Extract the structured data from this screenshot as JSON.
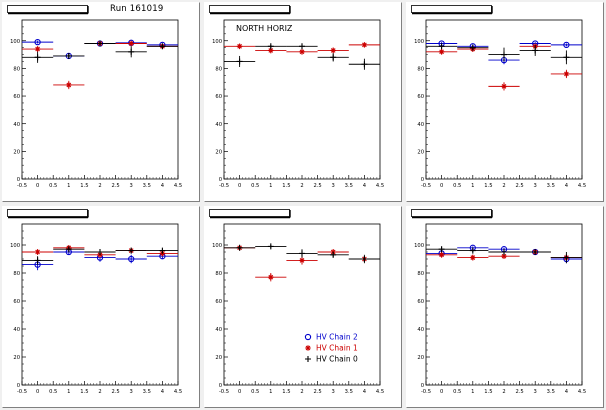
{
  "run_label": "Run 161019",
  "chart_data": [
    {
      "type": "scatter",
      "title": "",
      "annotation": "",
      "x_ticks": [
        "-0.5",
        "0",
        "0.5",
        "1",
        "1.5",
        "2",
        "2.5",
        "3",
        "3.5",
        "4",
        "4.5"
      ],
      "y_ticks": [
        "0",
        "20",
        "40",
        "60",
        "80",
        "100"
      ],
      "xlim": [
        -0.5,
        4.5
      ],
      "ylim": [
        0,
        115
      ],
      "series": [
        {
          "color": "#0000cc",
          "marker": "circle",
          "points": [
            {
              "x": 0,
              "y": 99,
              "xerr": 0.5,
              "yerr": 1
            },
            {
              "x": 1,
              "y": 89,
              "xerr": 0.5,
              "yerr": 2
            },
            {
              "x": 2,
              "y": 98,
              "xerr": 0.5,
              "yerr": 1
            },
            {
              "x": 3,
              "y": 98.5,
              "xerr": 0.5,
              "yerr": 1
            },
            {
              "x": 4,
              "y": 97,
              "xerr": 0.5,
              "yerr": 1
            }
          ]
        },
        {
          "color": "#cc0000",
          "marker": "star",
          "points": [
            {
              "x": 0,
              "y": 94,
              "xerr": 0.5,
              "yerr": 2
            },
            {
              "x": 1,
              "y": 68,
              "xerr": 0.5,
              "yerr": 3
            },
            {
              "x": 2,
              "y": 98,
              "xerr": 0.5,
              "yerr": 1
            },
            {
              "x": 3,
              "y": 98,
              "xerr": 0.5,
              "yerr": 1
            },
            {
              "x": 4,
              "y": 96,
              "xerr": 0.5,
              "yerr": 1
            }
          ]
        },
        {
          "color": "#000000",
          "marker": "cross",
          "points": [
            {
              "x": 0,
              "y": 88,
              "xerr": 0.5,
              "yerr": 4
            },
            {
              "x": 1,
              "y": 89,
              "xerr": 0.5,
              "yerr": 2
            },
            {
              "x": 2,
              "y": 98,
              "xerr": 0.5,
              "yerr": 1
            },
            {
              "x": 3,
              "y": 92,
              "xerr": 0.5,
              "yerr": 4
            },
            {
              "x": 4,
              "y": 96,
              "xerr": 0.5,
              "yerr": 1
            }
          ]
        }
      ]
    },
    {
      "type": "scatter",
      "title": "",
      "annotation": "NORTH HORIZ",
      "x_ticks": [
        "-0.5",
        "0",
        "0.5",
        "1",
        "1.5",
        "2",
        "2.5",
        "3",
        "3.5",
        "4",
        "4.5"
      ],
      "y_ticks": [
        "0",
        "20",
        "40",
        "60",
        "80",
        "100"
      ],
      "xlim": [
        -0.5,
        4.5
      ],
      "ylim": [
        0,
        115
      ],
      "series": [
        {
          "color": "#0000cc",
          "marker": "circle",
          "points": []
        },
        {
          "color": "#cc0000",
          "marker": "star",
          "points": [
            {
              "x": 0,
              "y": 96,
              "xerr": 0.5,
              "yerr": 1
            },
            {
              "x": 1,
              "y": 93,
              "xerr": 0.5,
              "yerr": 2
            },
            {
              "x": 2,
              "y": 92,
              "xerr": 0.5,
              "yerr": 2
            },
            {
              "x": 3,
              "y": 93,
              "xerr": 0.5,
              "yerr": 2
            },
            {
              "x": 4,
              "y": 97,
              "xerr": 0.5,
              "yerr": 1
            }
          ]
        },
        {
          "color": "#000000",
          "marker": "cross",
          "points": [
            {
              "x": 0,
              "y": 85,
              "xerr": 0.5,
              "yerr": 4
            },
            {
              "x": 1,
              "y": 96,
              "xerr": 0.5,
              "yerr": 1
            },
            {
              "x": 2,
              "y": 96,
              "xerr": 0.5,
              "yerr": 1
            },
            {
              "x": 3,
              "y": 88,
              "xerr": 0.5,
              "yerr": 3
            },
            {
              "x": 4,
              "y": 83,
              "xerr": 0.5,
              "yerr": 4
            }
          ]
        }
      ]
    },
    {
      "type": "scatter",
      "title": "",
      "annotation": "",
      "x_ticks": [
        "-0.5",
        "0",
        "0.5",
        "1",
        "1.5",
        "2",
        "2.5",
        "3",
        "3.5",
        "4",
        "4.5"
      ],
      "y_ticks": [
        "0",
        "20",
        "40",
        "60",
        "80",
        "100"
      ],
      "xlim": [
        -0.5,
        4.5
      ],
      "ylim": [
        0,
        115
      ],
      "series": [
        {
          "color": "#0000cc",
          "marker": "circle",
          "points": [
            {
              "x": 0,
              "y": 98,
              "xerr": 0.5,
              "yerr": 1
            },
            {
              "x": 1,
              "y": 96,
              "xerr": 0.5,
              "yerr": 1
            },
            {
              "x": 2,
              "y": 86,
              "xerr": 0.5,
              "yerr": 3
            },
            {
              "x": 3,
              "y": 98,
              "xerr": 0.5,
              "yerr": 1
            },
            {
              "x": 4,
              "y": 97,
              "xerr": 0.5,
              "yerr": 1
            }
          ]
        },
        {
          "color": "#cc0000",
          "marker": "star",
          "points": [
            {
              "x": 0,
              "y": 92,
              "xerr": 0.5,
              "yerr": 2
            },
            {
              "x": 1,
              "y": 94,
              "xerr": 0.5,
              "yerr": 2
            },
            {
              "x": 2,
              "y": 67,
              "xerr": 0.5,
              "yerr": 3
            },
            {
              "x": 3,
              "y": 96,
              "xerr": 0.5,
              "yerr": 1
            },
            {
              "x": 4,
              "y": 76,
              "xerr": 0.5,
              "yerr": 3
            }
          ]
        },
        {
          "color": "#000000",
          "marker": "cross",
          "points": [
            {
              "x": 0,
              "y": 96,
              "xerr": 0.5,
              "yerr": 1
            },
            {
              "x": 1,
              "y": 95,
              "xerr": 0.5,
              "yerr": 1
            },
            {
              "x": 2,
              "y": 90,
              "xerr": 0.5,
              "yerr": 5
            },
            {
              "x": 3,
              "y": 93,
              "xerr": 0.5,
              "yerr": 4
            },
            {
              "x": 4,
              "y": 88,
              "xerr": 0.5,
              "yerr": 5
            }
          ]
        }
      ]
    },
    {
      "type": "scatter",
      "title": "",
      "annotation": "",
      "x_ticks": [
        "-0.5",
        "0",
        "0.5",
        "1",
        "1.5",
        "2",
        "2.5",
        "3",
        "3.5",
        "4",
        "4.5"
      ],
      "y_ticks": [
        "0",
        "20",
        "40",
        "60",
        "80",
        "100"
      ],
      "xlim": [
        -0.5,
        4.5
      ],
      "ylim": [
        0,
        115
      ],
      "series": [
        {
          "color": "#0000cc",
          "marker": "circle",
          "points": [
            {
              "x": 0,
              "y": 86,
              "xerr": 0.5,
              "yerr": 4
            },
            {
              "x": 1,
              "y": 95,
              "xerr": 0.5,
              "yerr": 2
            },
            {
              "x": 2,
              "y": 91,
              "xerr": 0.5,
              "yerr": 3
            },
            {
              "x": 3,
              "y": 90,
              "xerr": 0.5,
              "yerr": 3
            },
            {
              "x": 4,
              "y": 92,
              "xerr": 0.5,
              "yerr": 2
            }
          ]
        },
        {
          "color": "#cc0000",
          "marker": "star",
          "points": [
            {
              "x": 0,
              "y": 95,
              "xerr": 0.5,
              "yerr": 2
            },
            {
              "x": 1,
              "y": 98,
              "xerr": 0.5,
              "yerr": 1
            },
            {
              "x": 2,
              "y": 93,
              "xerr": 0.5,
              "yerr": 2
            },
            {
              "x": 3,
              "y": 96,
              "xerr": 0.5,
              "yerr": 1
            },
            {
              "x": 4,
              "y": 94,
              "xerr": 0.5,
              "yerr": 2
            }
          ]
        },
        {
          "color": "#000000",
          "marker": "cross",
          "points": [
            {
              "x": 0,
              "y": 89,
              "xerr": 0.5,
              "yerr": 3
            },
            {
              "x": 1,
              "y": 97,
              "xerr": 0.5,
              "yerr": 1
            },
            {
              "x": 2,
              "y": 95,
              "xerr": 0.5,
              "yerr": 2
            },
            {
              "x": 3,
              "y": 96,
              "xerr": 0.5,
              "yerr": 1
            },
            {
              "x": 4,
              "y": 96,
              "xerr": 0.5,
              "yerr": 1
            }
          ]
        }
      ]
    },
    {
      "type": "scatter",
      "title": "",
      "annotation": "",
      "x_ticks": [
        "-0.5",
        "0",
        "0.5",
        "1",
        "1.5",
        "2",
        "2.5",
        "3",
        "3.5",
        "4",
        "4.5"
      ],
      "y_ticks": [
        "0",
        "20",
        "40",
        "60",
        "80",
        "100"
      ],
      "xlim": [
        -0.5,
        4.5
      ],
      "ylim": [
        0,
        115
      ],
      "legend": {
        "placement": "bottom-right",
        "entries": [
          "HV Chain 2",
          "HV Chain 1",
          "HV Chain 0"
        ]
      },
      "series": [
        {
          "name": "HV Chain 2",
          "color": "#0000cc",
          "marker": "circle",
          "points": []
        },
        {
          "name": "HV Chain 1",
          "color": "#cc0000",
          "marker": "star",
          "points": [
            {
              "x": 0,
              "y": 98,
              "xerr": 0.5,
              "yerr": 1
            },
            {
              "x": 1,
              "y": 77,
              "xerr": 0.5,
              "yerr": 3
            },
            {
              "x": 2,
              "y": 89,
              "xerr": 0.5,
              "yerr": 3
            },
            {
              "x": 3,
              "y": 95,
              "xerr": 0.5,
              "yerr": 2
            },
            {
              "x": 4,
              "y": 90,
              "xerr": 0.5,
              "yerr": 2
            }
          ]
        },
        {
          "name": "HV Chain 0",
          "color": "#000000",
          "marker": "cross",
          "points": [
            {
              "x": 0,
              "y": 98,
              "xerr": 0.5,
              "yerr": 1
            },
            {
              "x": 1,
              "y": 99,
              "xerr": 0.5,
              "yerr": 1
            },
            {
              "x": 2,
              "y": 94,
              "xerr": 0.5,
              "yerr": 3
            },
            {
              "x": 3,
              "y": 93,
              "xerr": 0.5,
              "yerr": 2
            },
            {
              "x": 4,
              "y": 90,
              "xerr": 0.5,
              "yerr": 3
            }
          ]
        }
      ]
    },
    {
      "type": "scatter",
      "title": "",
      "annotation": "",
      "x_ticks": [
        "-0.5",
        "0",
        "0.5",
        "1",
        "1.5",
        "2",
        "2.5",
        "3",
        "3.5",
        "4",
        "4.5"
      ],
      "y_ticks": [
        "0",
        "20",
        "40",
        "60",
        "80",
        "100"
      ],
      "xlim": [
        -0.5,
        4.5
      ],
      "ylim": [
        0,
        115
      ],
      "series": [
        {
          "color": "#0000cc",
          "marker": "circle",
          "points": [
            {
              "x": 0,
              "y": 94,
              "xerr": 0.5,
              "yerr": 2
            },
            {
              "x": 1,
              "y": 98,
              "xerr": 0.5,
              "yerr": 1
            },
            {
              "x": 2,
              "y": 97,
              "xerr": 0.5,
              "yerr": 1
            },
            {
              "x": 3,
              "y": 95,
              "xerr": 0.5,
              "yerr": 1
            },
            {
              "x": 4,
              "y": 90,
              "xerr": 0.5,
              "yerr": 3
            }
          ]
        },
        {
          "color": "#cc0000",
          "marker": "star",
          "points": [
            {
              "x": 0,
              "y": 93,
              "xerr": 0.5,
              "yerr": 2
            },
            {
              "x": 1,
              "y": 91,
              "xerr": 0.5,
              "yerr": 2
            },
            {
              "x": 2,
              "y": 92,
              "xerr": 0.5,
              "yerr": 2
            },
            {
              "x": 3,
              "y": 95,
              "xerr": 0.5,
              "yerr": 1
            },
            {
              "x": 4,
              "y": 91,
              "xerr": 0.5,
              "yerr": 2
            }
          ]
        },
        {
          "color": "#000000",
          "marker": "cross",
          "points": [
            {
              "x": 0,
              "y": 97,
              "xerr": 0.5,
              "yerr": 2
            },
            {
              "x": 1,
              "y": 96,
              "xerr": 0.5,
              "yerr": 1
            },
            {
              "x": 2,
              "y": 95,
              "xerr": 0.5,
              "yerr": 2
            },
            {
              "x": 3,
              "y": 95,
              "xerr": 0.5,
              "yerr": 1
            },
            {
              "x": 4,
              "y": 91,
              "xerr": 0.5,
              "yerr": 4
            }
          ]
        }
      ]
    }
  ]
}
